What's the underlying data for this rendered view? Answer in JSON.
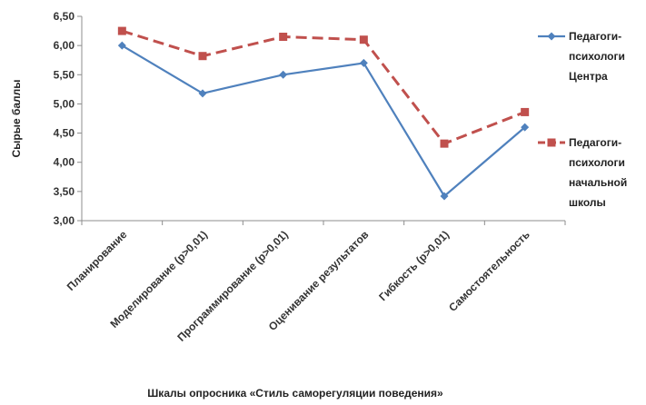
{
  "chart_data": {
    "type": "line",
    "title": "",
    "ylabel": "Сырые баллы",
    "xlabel": "Шкалы опросника «Стиль саморегуляции поведения»",
    "ylim": [
      3.0,
      6.5
    ],
    "ytick_step": 0.5,
    "yticks": [
      "3,00",
      "3,50",
      "4,00",
      "4,50",
      "5,00",
      "5,50",
      "6,00",
      "6,50"
    ],
    "categories": [
      "Планирование",
      "Моделирование (p>0,01)",
      "Программирование (p>0,01)",
      "Оценивание результатов",
      "Гибкость (p>0,01)",
      "Самостоятельность"
    ],
    "grid": false,
    "legend_position": "right",
    "series": [
      {
        "name": "Педагоги-психологи Центра",
        "legend_lines": [
          "Педагоги-",
          "психологи",
          "Центра"
        ],
        "values": [
          6.0,
          5.18,
          5.5,
          5.7,
          3.42,
          4.6
        ],
        "color": "#4f81bd",
        "marker": "diamond",
        "dash": "solid"
      },
      {
        "name": "Педагоги-психологи начальной школы",
        "legend_lines": [
          "Педагоги-",
          "психологи",
          "начальной",
          "школы"
        ],
        "values": [
          6.25,
          5.82,
          6.15,
          6.1,
          4.32,
          4.86
        ],
        "color": "#c0504d",
        "marker": "square",
        "dash": "dashed"
      }
    ]
  }
}
